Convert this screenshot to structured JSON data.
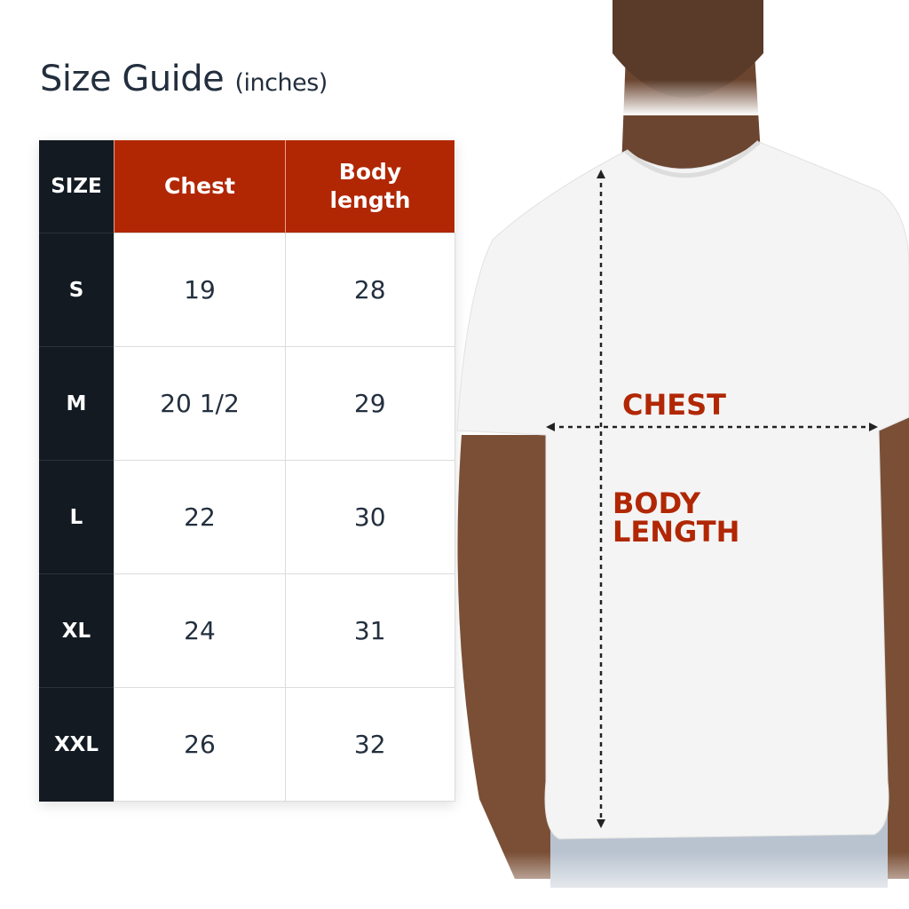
{
  "title": {
    "main": "Size Guide",
    "unit": "(inches)"
  },
  "table": {
    "headers": [
      "SIZE",
      "Chest",
      "Body length"
    ],
    "rows": [
      {
        "size": "S",
        "chest": "19",
        "body_length": "28"
      },
      {
        "size": "M",
        "chest": "20 1/2",
        "body_length": "29"
      },
      {
        "size": "L",
        "chest": "22",
        "body_length": "30"
      },
      {
        "size": "XL",
        "chest": "24",
        "body_length": "31"
      },
      {
        "size": "XXL",
        "chest": "26",
        "body_length": "32"
      }
    ]
  },
  "diagram": {
    "chest_label": "CHEST",
    "body_length_label_line1": "BODY",
    "body_length_label_line2": "LENGTH"
  },
  "colors": {
    "accent": "#b12704",
    "dark": "#131a22",
    "text": "#232f3e"
  }
}
